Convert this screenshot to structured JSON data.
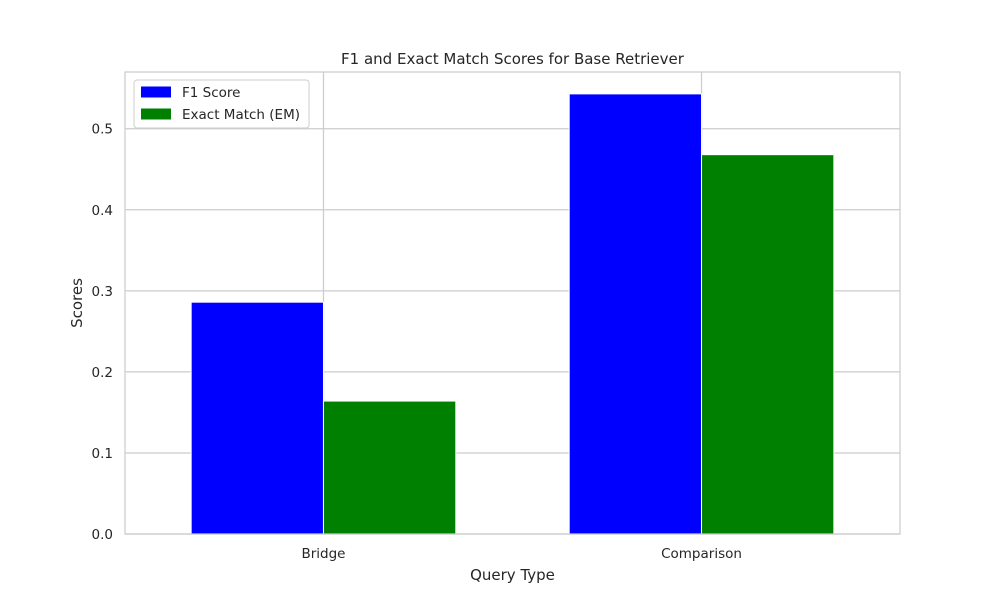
{
  "chart_data": {
    "type": "bar",
    "title": "F1 and Exact Match Scores for Base Retriever",
    "xlabel": "Query Type",
    "ylabel": "Scores",
    "categories": [
      "Bridge",
      "Comparison"
    ],
    "series": [
      {
        "name": "F1 Score",
        "values": [
          0.286,
          0.543
        ],
        "color": "#0000ff"
      },
      {
        "name": "Exact Match (EM)",
        "values": [
          0.164,
          0.468
        ],
        "color": "#008000"
      }
    ],
    "ylim": [
      0,
      0.57
    ],
    "yticks": [
      0.0,
      0.1,
      0.2,
      0.3,
      0.4,
      0.5
    ],
    "ytick_labels": [
      "0.0",
      "0.1",
      "0.2",
      "0.3",
      "0.4",
      "0.5"
    ],
    "grid": true,
    "legend_position": "upper-left",
    "colors": {
      "grid": "#cccccc",
      "frame": "#cccccc",
      "text": "#262626",
      "background": "#ffffff"
    }
  }
}
